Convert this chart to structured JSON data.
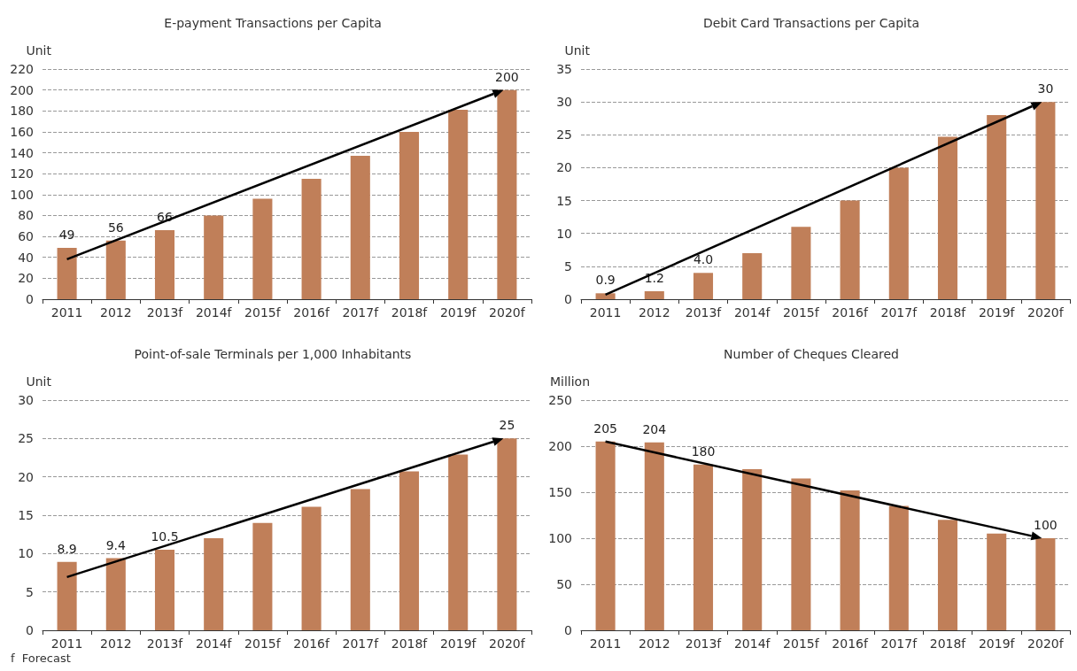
{
  "chart_data": [
    {
      "type": "bar",
      "title": "E-payment Transactions per Capita",
      "ylabel": "Unit",
      "categories": [
        "2011",
        "2012",
        "2013f",
        "2014f",
        "2015f",
        "2016f",
        "2017f",
        "2018f",
        "2019f",
        "2020f"
      ],
      "ylim": [
        0,
        220
      ],
      "yticks": [
        0,
        20,
        40,
        60,
        80,
        100,
        120,
        140,
        160,
        180,
        200,
        220
      ],
      "grid": "y",
      "series": [
        {
          "color": "#c07f59",
          "values": [
            49,
            56,
            66,
            80,
            96,
            115,
            137,
            160,
            181,
            200
          ],
          "value_labels": [
            "49",
            "56",
            "66",
            null,
            null,
            null,
            null,
            null,
            null,
            "200"
          ]
        }
      ]
    },
    {
      "type": "bar",
      "title": "Debit Card Transactions per Capita",
      "ylabel": "Unit",
      "categories": [
        "2011",
        "2012",
        "2013f",
        "2014f",
        "2015f",
        "2016f",
        "2017f",
        "2018f",
        "2019f",
        "2020f"
      ],
      "ylim": [
        0,
        35
      ],
      "yticks": [
        0,
        5,
        10,
        15,
        20,
        25,
        30,
        35
      ],
      "grid": "y",
      "series": [
        {
          "color": "#c07f59",
          "values": [
            0.9,
            1.2,
            4.0,
            7,
            11,
            15,
            20,
            24.7,
            28,
            30
          ],
          "value_labels": [
            "0.9",
            "1.2",
            "4.0",
            null,
            null,
            null,
            null,
            null,
            null,
            "30"
          ]
        }
      ]
    },
    {
      "type": "bar",
      "title": "Point-of-sale Terminals per 1,000 Inhabitants",
      "ylabel": "Unit",
      "categories": [
        "2011",
        "2012",
        "2013f",
        "2014f",
        "2015f",
        "2016f",
        "2017f",
        "2018f",
        "2019f",
        "2020f"
      ],
      "ylim": [
        0,
        30
      ],
      "yticks": [
        0,
        5,
        10,
        15,
        20,
        25,
        30
      ],
      "grid": "y",
      "annotations": [
        "f  Forecast"
      ],
      "series": [
        {
          "color": "#c07f59",
          "values": [
            8.9,
            9.4,
            10.5,
            12,
            14,
            16.1,
            18.4,
            20.7,
            22.9,
            25
          ],
          "value_labels": [
            "8.9",
            "9.4",
            "10.5",
            null,
            null,
            null,
            null,
            null,
            null,
            "25"
          ]
        }
      ]
    },
    {
      "type": "bar",
      "title": "Number of Cheques Cleared",
      "ylabel": "Million",
      "categories": [
        "2011",
        "2012",
        "2013f",
        "2014f",
        "2015f",
        "2016f",
        "2017f",
        "2018f",
        "2019f",
        "2020f"
      ],
      "ylim": [
        0,
        250
      ],
      "yticks": [
        0,
        50,
        100,
        150,
        200,
        250
      ],
      "grid": "y",
      "series": [
        {
          "color": "#c07f59",
          "values": [
            205,
            204,
            180,
            175,
            165,
            152,
            135,
            120,
            105,
            100
          ],
          "value_labels": [
            "205",
            "204",
            "180",
            null,
            null,
            null,
            null,
            null,
            null,
            "100"
          ]
        }
      ]
    }
  ]
}
